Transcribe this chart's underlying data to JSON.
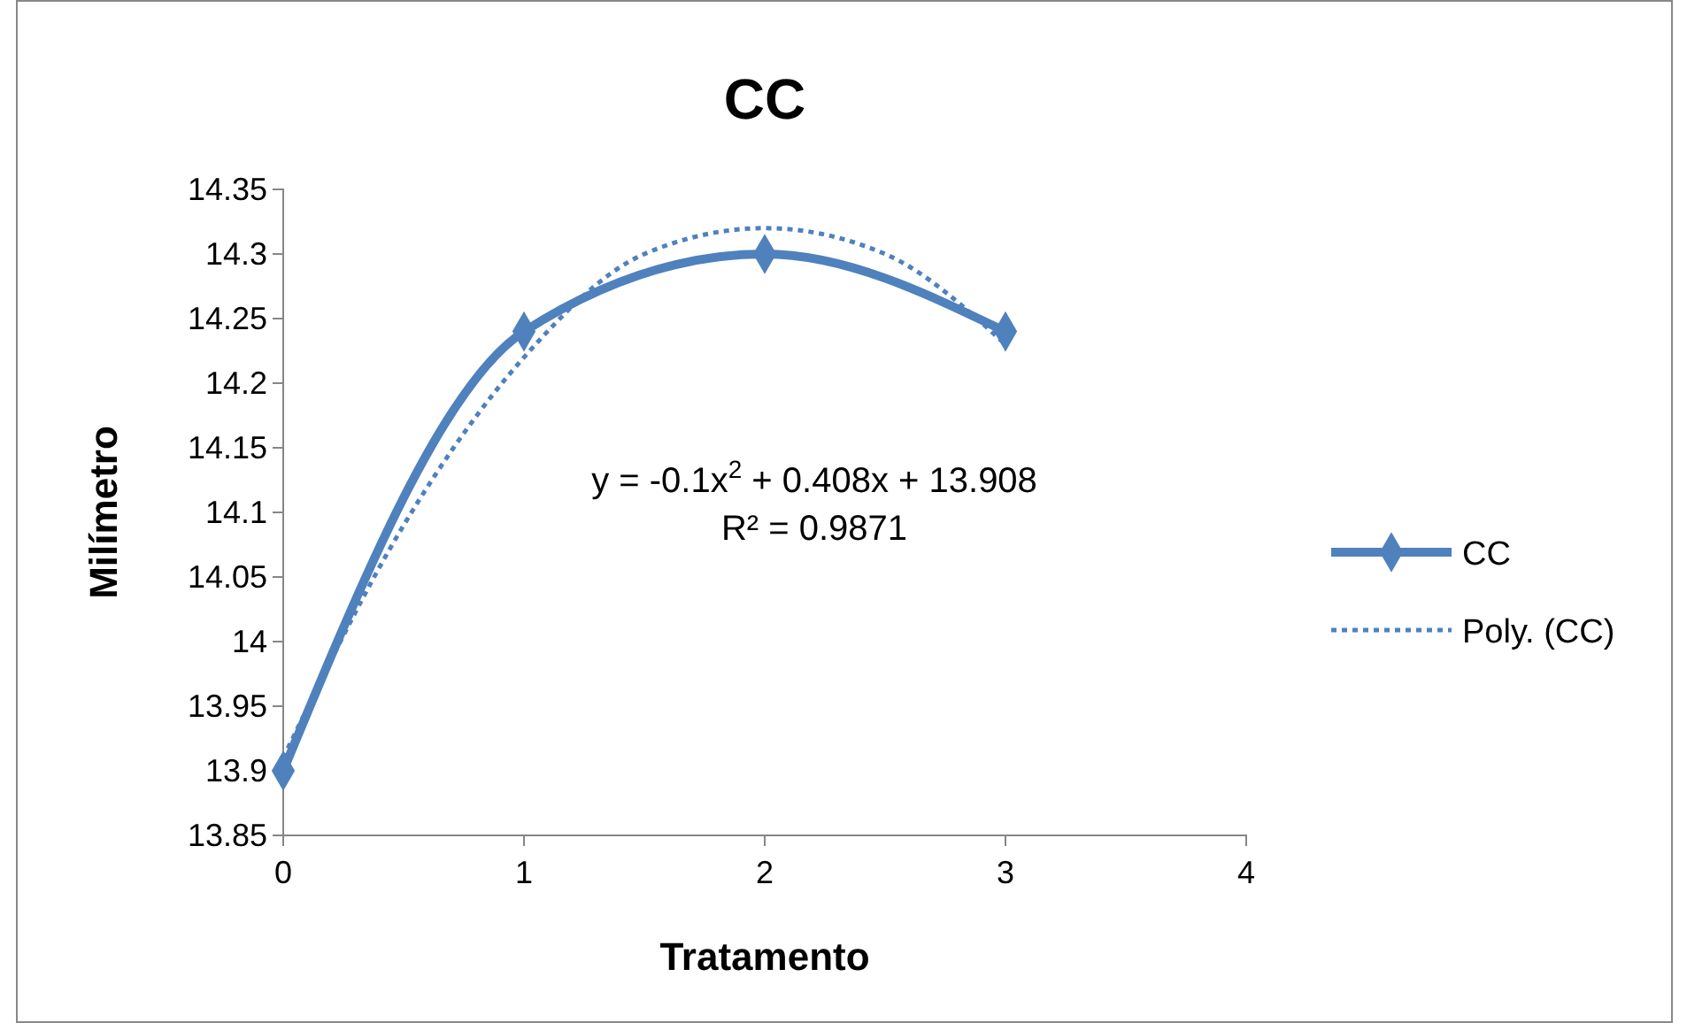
{
  "chart_data": {
    "type": "line",
    "title": "CC",
    "xlabel": "Tratamento",
    "ylabel": "Milímetro",
    "x": [
      0,
      1,
      2,
      3
    ],
    "series": [
      {
        "name": "CC",
        "color": "#4f81bd",
        "values": [
          13.9,
          14.24,
          14.3,
          14.24
        ],
        "marker": "diamond",
        "line_style": "solid"
      },
      {
        "name": "Poly. (CC)",
        "type": "line",
        "color": "#4f81bd",
        "x": [
          0,
          0.5,
          1,
          1.5,
          2,
          2.5,
          3
        ],
        "values": [
          13.91,
          14.09,
          14.22,
          14.3,
          14.32,
          14.3,
          14.23
        ],
        "marker": "none",
        "line_style": "dotted"
      }
    ],
    "xlim": [
      0,
      4
    ],
    "xticks": [
      0,
      1,
      2,
      3,
      4
    ],
    "ylim": [
      13.85,
      14.35
    ],
    "yticks": [
      13.85,
      13.9,
      13.95,
      14,
      14.05,
      14.1,
      14.15,
      14.2,
      14.25,
      14.3,
      14.35
    ],
    "grid": false,
    "legend": "right",
    "annotations": [
      "y = -0.1x$^{2}$ + 0.408x + 13.908",
      "R² = 0.9871"
    ]
  }
}
